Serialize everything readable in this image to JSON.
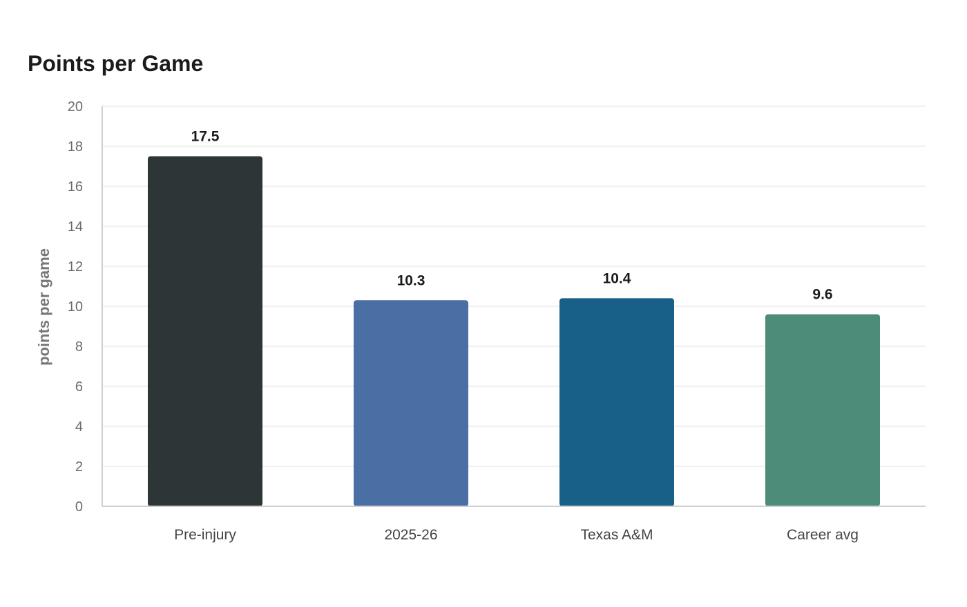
{
  "chart_data": {
    "type": "bar",
    "title": "Points per Game",
    "xlabel": "",
    "ylabel": "points per game",
    "categories": [
      "Pre-injury",
      "2025-26",
      "Texas A&M",
      "Career avg"
    ],
    "values": [
      17.5,
      10.3,
      10.4,
      9.6
    ],
    "value_labels": [
      "17.5",
      "10.3",
      "10.4",
      "9.6"
    ],
    "bar_colors": [
      "#2d3536",
      "#4a6fa5",
      "#186087",
      "#4e8c7a"
    ],
    "ylim": [
      0,
      20
    ],
    "yticks": [
      0,
      2,
      4,
      6,
      8,
      10,
      12,
      14,
      16,
      18,
      20
    ],
    "grid": true,
    "legend": "none"
  }
}
